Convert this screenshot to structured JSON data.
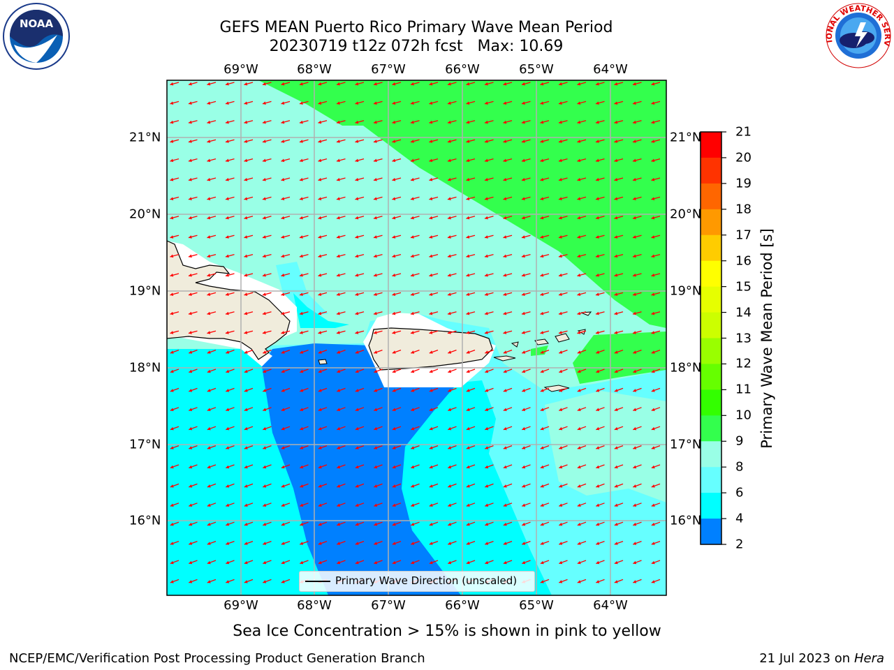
{
  "title": {
    "line1": "GEFS MEAN Puerto Rico Primary Wave Mean Period",
    "line2": "20230719 t12z 072h fcst   Max: 10.69"
  },
  "map": {
    "lon_labels": [
      "69°W",
      "68°W",
      "67°W",
      "66°W",
      "65°W",
      "64°W"
    ],
    "lat_labels": [
      "21°N",
      "20°N",
      "19°N",
      "18°N",
      "17°N",
      "16°N"
    ],
    "legend_label": "Primary Wave Direction (unscaled)",
    "arrow_color": "#ff0000",
    "land_color": "#f0ecdc",
    "fill_colors": {
      "4-6": "#0080ff",
      "6-8": "#00ffff",
      "8-9": "#66ffff",
      "9-10": "#99ffe6",
      "10-11": "#33ff4d"
    }
  },
  "colorbar": {
    "label": "Primary Wave Mean Period [s]",
    "ticks": [
      "21",
      "20",
      "19",
      "18",
      "17",
      "16",
      "15",
      "14",
      "13",
      "12",
      "11",
      "10",
      "9",
      "8",
      "6",
      "4",
      "2"
    ],
    "colors": [
      "#ff0000",
      "#ff3300",
      "#ff6600",
      "#ff9900",
      "#ffcc00",
      "#ffff00",
      "#e6ff00",
      "#ccff00",
      "#99ff00",
      "#66ff00",
      "#33ff00",
      "#33ff4d",
      "#99ffe6",
      "#66ffff",
      "#00ffff",
      "#0080ff",
      "#0000ff"
    ]
  },
  "notes": {
    "sea_ice": "Sea Ice Concentration > 15% is shown in pink to yellow"
  },
  "footer": {
    "left": "NCEP/EMC/Verification Post Processing Product Generation Branch",
    "date": "21 Jul 2023 on ",
    "machine": "Hera"
  },
  "logos": {
    "noaa_text": "NOAA",
    "nws_text": "NATIONAL WEATHER SERVICE"
  }
}
